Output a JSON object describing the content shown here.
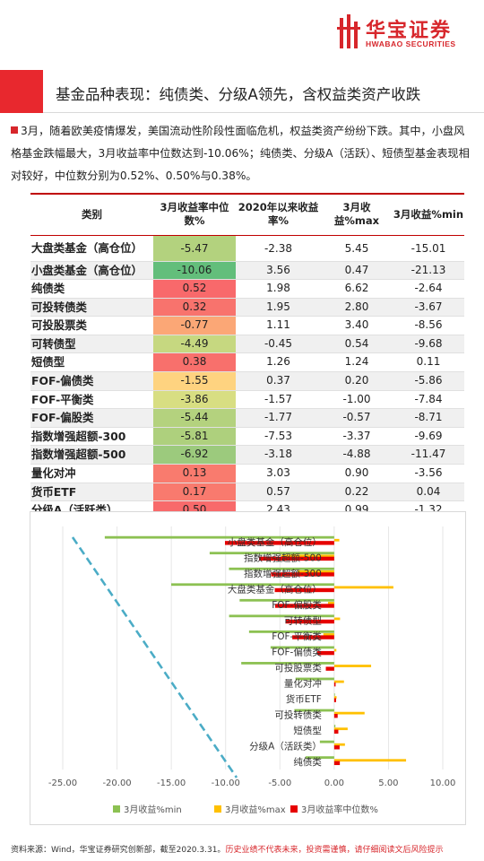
{
  "header": {
    "logo_cn": "华宝证券",
    "logo_en": "HWABAO SECURITIES",
    "title": "基金品种表现：纯债类、分级A领先，含权益类资产收跌"
  },
  "paragraph": "3月，随着欧美疫情爆发，美国流动性阶段性面临危机，权益类资产纷纷下跌。其中，小盘风格基金跌幅最大，3月收益率中位数达到-10.06%；纯债类、分级A（活跃）、短债型基金表现相对较好，中位数分别为0.52%、0.50%与0.38%。",
  "table": {
    "headers": [
      "类别",
      "3月收益率中位数%",
      "2020年以来收益率%",
      "3月收益%max",
      "3月收益%min"
    ],
    "rows": [
      {
        "name": "大盘类基金（高仓位）",
        "median": "-5.47",
        "ytd": "-2.38",
        "max": "5.45",
        "min": "-15.01",
        "color": "#b3d27e"
      },
      {
        "name": "小盘类基金（高仓位）",
        "median": "-10.06",
        "ytd": "3.56",
        "max": "0.47",
        "min": "-21.13",
        "color": "#63be7b"
      },
      {
        "name": "纯债类",
        "median": "0.52",
        "ytd": "1.98",
        "max": "6.62",
        "min": "-2.64",
        "color": "#f8696b"
      },
      {
        "name": "可投转债类",
        "median": "0.32",
        "ytd": "1.95",
        "max": "2.80",
        "min": "-3.67",
        "color": "#f8736d"
      },
      {
        "name": "可投股票类",
        "median": "-0.77",
        "ytd": "1.11",
        "max": "3.40",
        "min": "-8.56",
        "color": "#fba776"
      },
      {
        "name": "可转债型",
        "median": "-4.49",
        "ytd": "-0.45",
        "max": "0.54",
        "min": "-9.68",
        "color": "#c6d880"
      },
      {
        "name": "短债型",
        "median": "0.38",
        "ytd": "1.26",
        "max": "1.24",
        "min": "0.11",
        "color": "#f8706c"
      },
      {
        "name": "FOF-偏债类",
        "median": "-1.55",
        "ytd": "0.37",
        "max": "0.20",
        "min": "-5.86",
        "color": "#fed380"
      },
      {
        "name": "FOF-平衡类",
        "median": "-3.86",
        "ytd": "-1.57",
        "max": "-1.00",
        "min": "-7.84",
        "color": "#d8de82"
      },
      {
        "name": "FOF-偏股类",
        "median": "-5.44",
        "ytd": "-1.77",
        "max": "-0.57",
        "min": "-8.71",
        "color": "#b4d27e"
      },
      {
        "name": "指数增强超额-300",
        "median": "-5.81",
        "ytd": "-7.53",
        "max": "-3.37",
        "min": "-9.69",
        "color": "#aed07d"
      },
      {
        "name": "指数增强超额-500",
        "median": "-6.92",
        "ytd": "-3.18",
        "max": "-4.88",
        "min": "-11.47",
        "color": "#9cca7d"
      },
      {
        "name": "量化对冲",
        "median": "0.13",
        "ytd": "3.03",
        "max": "0.90",
        "min": "-3.56",
        "color": "#f97b6e"
      },
      {
        "name": "货币ETF",
        "median": "0.17",
        "ytd": "0.57",
        "max": "0.22",
        "min": "0.04",
        "color": "#f97a6e"
      },
      {
        "name": "分级A（活跃类）",
        "median": "0.50",
        "ytd": "2.43",
        "max": "0.99",
        "min": "-1.32",
        "color": "#f86a6b"
      }
    ]
  },
  "chart_data": {
    "type": "bar",
    "orientation": "horizontal",
    "categories": [
      "小盘类基金（高仓位）",
      "指数增强超额-500",
      "指数增强超额-300",
      "大盘类基金（高仓位）",
      "FOF-偏股类",
      "可转债型",
      "FOF-平衡类",
      "FOF-偏债类",
      "可投股票类",
      "量化对冲",
      "货币ETF",
      "可投转债类",
      "短债型",
      "分级A（活跃类）",
      "纯债类"
    ],
    "series": [
      {
        "name": "3月收益%min",
        "color": "#8cc152",
        "values": [
          -21.13,
          -11.47,
          -9.69,
          -15.01,
          -8.71,
          -9.68,
          -7.84,
          -5.86,
          -8.56,
          -3.56,
          0.04,
          -3.67,
          0.11,
          -1.32,
          -2.64
        ]
      },
      {
        "name": "3月收益%max",
        "color": "#ffc000",
        "values": [
          0.47,
          -4.88,
          -3.37,
          5.45,
          -0.57,
          0.54,
          -1.0,
          0.2,
          3.4,
          0.9,
          0.22,
          2.8,
          1.24,
          0.99,
          6.62
        ]
      },
      {
        "name": "3月收益率中位数%",
        "color": "#e60000",
        "values": [
          -10.06,
          -6.92,
          -5.81,
          -5.47,
          -5.44,
          -4.49,
          -3.86,
          -1.55,
          -0.77,
          0.13,
          0.17,
          0.32,
          0.38,
          0.5,
          0.52
        ]
      }
    ],
    "xlim": [
      -25,
      10
    ],
    "xticks": [
      "-25.00",
      "-20.00",
      "-15.00",
      "-10.00",
      "-5.00",
      "0.00",
      "5.00",
      "10.00"
    ],
    "legend_position": "bottom",
    "grid": true
  },
  "footer": {
    "source": "资料来源：Wind，华宝证券研究创新部，截至2020.3.31。",
    "warning": "历史业绩不代表未来，投资需谨慎，请仔细阅读文后风险提示"
  }
}
